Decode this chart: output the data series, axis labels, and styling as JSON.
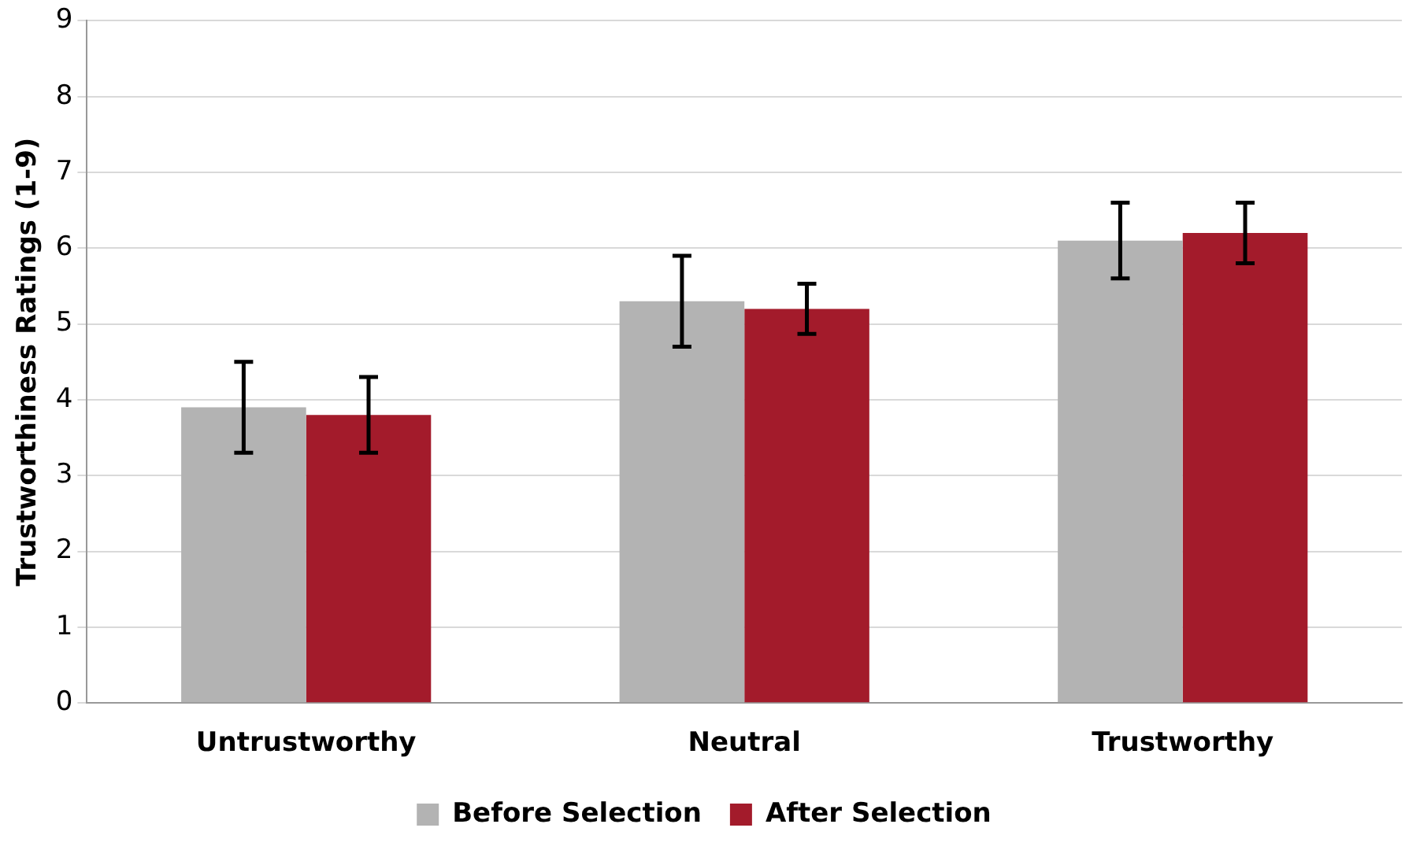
{
  "chart_data": {
    "type": "bar",
    "ylabel": "Trustworthiness Ratings (1-9)",
    "categories": [
      "Untrustworthy",
      "Neutral",
      "Trustworthy"
    ],
    "series": [
      {
        "name": "Before Selection",
        "color": "#b3b3b3",
        "values": [
          3.9,
          5.3,
          6.1
        ],
        "errors": [
          0.6,
          0.6,
          0.5
        ]
      },
      {
        "name": "After Selection",
        "color": "#a31b2b",
        "values": [
          3.8,
          5.2,
          6.2
        ],
        "errors": [
          0.5,
          0.33,
          0.4
        ]
      }
    ],
    "ylim": [
      0,
      9
    ],
    "yticks": [
      0,
      1,
      2,
      3,
      4,
      5,
      6,
      7,
      8,
      9
    ],
    "grid": "y",
    "legend": "bottom"
  }
}
